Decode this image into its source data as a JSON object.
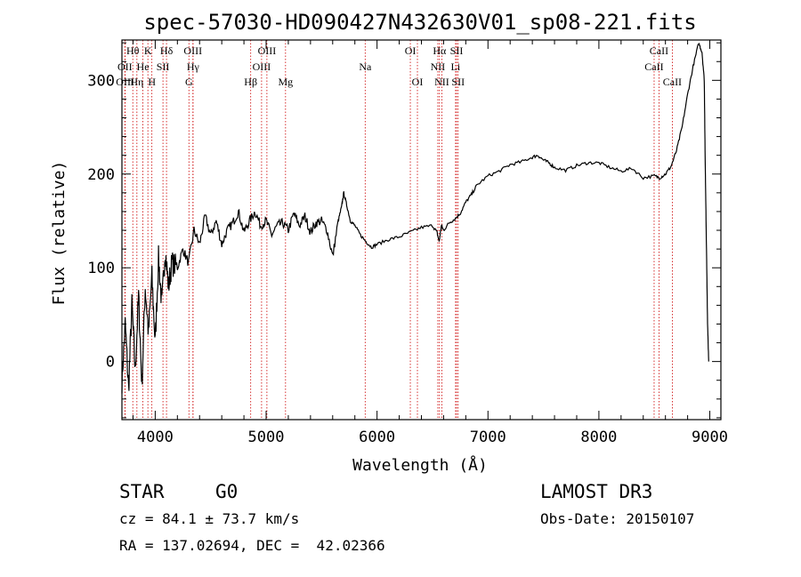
{
  "chart_data": {
    "type": "line",
    "title": "spec-57030-HD090427N432630V01_sp08-221.fits",
    "xlabel": "Wavelength (Å)",
    "ylabel": "Flux (relative)",
    "xlim": [
      3700,
      9100
    ],
    "ylim": [
      -62,
      343
    ],
    "xticks": [
      4000,
      5000,
      6000,
      7000,
      8000,
      9000
    ],
    "yticks": [
      0,
      100,
      200,
      300
    ],
    "series": [
      {
        "name": "spectrum",
        "x": [
          3700,
          3730,
          3760,
          3790,
          3820,
          3850,
          3880,
          3910,
          3940,
          3970,
          4000,
          4030,
          4060,
          4090,
          4120,
          4150,
          4200,
          4250,
          4300,
          4350,
          4400,
          4450,
          4500,
          4550,
          4600,
          4650,
          4700,
          4750,
          4800,
          4850,
          4900,
          4950,
          5000,
          5050,
          5100,
          5150,
          5200,
          5250,
          5300,
          5350,
          5400,
          5450,
          5500,
          5550,
          5600,
          5650,
          5680,
          5700,
          5730,
          5760,
          5800,
          5850,
          5900,
          5950,
          6000,
          6100,
          6200,
          6300,
          6400,
          6500,
          6540,
          6560,
          6580,
          6600,
          6650,
          6700,
          6750,
          6800,
          6850,
          6900,
          7000,
          7100,
          7200,
          7300,
          7400,
          7450,
          7500,
          7550,
          7600,
          7700,
          7800,
          7900,
          8000,
          8100,
          8200,
          8300,
          8400,
          8500,
          8550,
          8600,
          8650,
          8700,
          8750,
          8800,
          8850,
          8900,
          8930,
          8950,
          8960,
          8970,
          8980,
          8990
        ],
        "y": [
          -20,
          40,
          -30,
          60,
          -10,
          70,
          -25,
          80,
          30,
          90,
          20,
          110,
          60,
          120,
          80,
          105,
          100,
          120,
          105,
          140,
          125,
          155,
          135,
          150,
          125,
          140,
          148,
          160,
          138,
          150,
          160,
          145,
          150,
          135,
          145,
          148,
          140,
          158,
          145,
          155,
          138,
          148,
          150,
          140,
          112,
          150,
          165,
          180,
          165,
          150,
          145,
          135,
          128,
          122,
          125,
          130,
          133,
          138,
          143,
          145,
          138,
          128,
          145,
          140,
          148,
          152,
          158,
          170,
          178,
          188,
          198,
          203,
          210,
          213,
          218,
          220,
          215,
          212,
          207,
          204,
          209,
          212,
          212,
          207,
          203,
          206,
          196,
          198,
          196,
          200,
          208,
          225,
          250,
          285,
          315,
          340,
          330,
          300,
          200,
          120,
          40,
          0
        ]
      }
    ],
    "line_markers": [
      {
        "label": "Hθ",
        "wave": 3798,
        "row": 0
      },
      {
        "label": "OII",
        "wave": 3727,
        "row": 1
      },
      {
        "label": "OIII",
        "wave": 3729,
        "row": 2
      },
      {
        "label": "Hη",
        "wave": 3835,
        "row": 2
      },
      {
        "label": "He",
        "wave": 3889,
        "row": 1
      },
      {
        "label": "K",
        "wave": 3934,
        "row": 0
      },
      {
        "label": "H",
        "wave": 3970,
        "row": 2
      },
      {
        "label": "SII",
        "wave": 4070,
        "row": 1
      },
      {
        "label": "Hδ",
        "wave": 4102,
        "row": 0
      },
      {
        "label": "OIII",
        "wave": 4340,
        "row": 0
      },
      {
        "label": "Hγ",
        "wave": 4341,
        "row": 1
      },
      {
        "label": "G",
        "wave": 4304,
        "row": 2
      },
      {
        "label": "Hβ",
        "wave": 4861,
        "row": 2
      },
      {
        "label": "OIII",
        "wave": 5007,
        "row": 0
      },
      {
        "label": "OIII",
        "wave": 4959,
        "row": 1
      },
      {
        "label": "Mg",
        "wave": 5175,
        "row": 2
      },
      {
        "label": "Na",
        "wave": 5893,
        "row": 1
      },
      {
        "label": "OI",
        "wave": 6300,
        "row": 0
      },
      {
        "label": "OI",
        "wave": 6364,
        "row": 2
      },
      {
        "label": "Hα",
        "wave": 6563,
        "row": 0
      },
      {
        "label": "NII",
        "wave": 6548,
        "row": 1
      },
      {
        "label": "NII",
        "wave": 6584,
        "row": 2
      },
      {
        "label": "SII",
        "wave": 6717,
        "row": 0
      },
      {
        "label": "Li",
        "wave": 6708,
        "row": 1
      },
      {
        "label": "SII",
        "wave": 6731,
        "row": 2
      },
      {
        "label": "CaII",
        "wave": 8542,
        "row": 0
      },
      {
        "label": "CaII",
        "wave": 8498,
        "row": 1
      },
      {
        "label": "CaII",
        "wave": 8662,
        "row": 2
      }
    ]
  },
  "info": {
    "object_class": "STAR",
    "subclass": "G0",
    "survey": "LAMOST DR3",
    "cz": "cz = 84.1 ± 73.7 km/s",
    "obs_date": "Obs-Date: 20150107",
    "coords": "RA = 137.02694, DEC =  42.02366"
  },
  "colors": {
    "axis": "#000000",
    "spectrum": "#000000",
    "marker_line": "#cc0000"
  }
}
